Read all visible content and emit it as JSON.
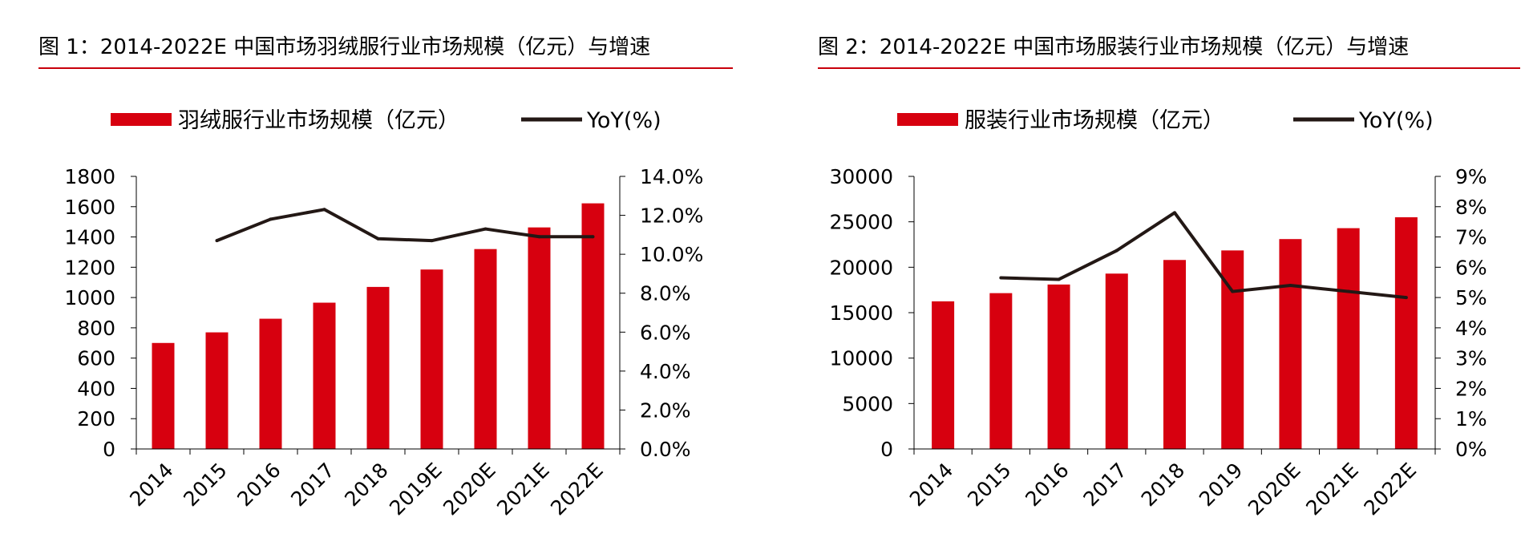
{
  "colors": {
    "bar": "#d7000f",
    "line": "#231815",
    "accent_rule": "#c8000b"
  },
  "chart_data": [
    {
      "type": "bar",
      "title": "图 1：2014-2022E 中国市场羽绒服行业市场规模（亿元）与增速",
      "legend_position": "top",
      "categories": [
        "2014",
        "2015",
        "2016",
        "2017",
        "2018",
        "2019E",
        "2020E",
        "2021E",
        "2022E"
      ],
      "series": [
        {
          "name": "羽绒服行业市场规模（亿元）",
          "type": "bar",
          "axis": "left",
          "values": [
            700,
            770,
            860,
            966,
            1070,
            1185,
            1320,
            1463,
            1622
          ]
        },
        {
          "name": "YoY(%)",
          "type": "line",
          "axis": "right",
          "values": [
            null,
            10.7,
            11.8,
            12.3,
            10.8,
            10.7,
            11.3,
            10.9,
            10.9
          ]
        }
      ],
      "y_left": {
        "ylim": [
          0,
          1800
        ],
        "ticks": [
          "0",
          "200",
          "400",
          "600",
          "800",
          "1000",
          "1200",
          "1400",
          "1600",
          "1800"
        ]
      },
      "y_right": {
        "ylim": [
          0,
          14
        ],
        "ticks": [
          "0.0%",
          "2.0%",
          "4.0%",
          "6.0%",
          "8.0%",
          "10.0%",
          "12.0%",
          "14.0%"
        ]
      },
      "grid": false
    },
    {
      "type": "bar",
      "title": "图 2：2014-2022E 中国市场服装行业市场规模（亿元）与增速",
      "legend_position": "top",
      "categories": [
        "2014",
        "2015",
        "2016",
        "2017",
        "2018",
        "2019",
        "2020E",
        "2021E",
        "2022E"
      ],
      "series": [
        {
          "name": "服装行业市场规模（亿元）",
          "type": "bar",
          "axis": "left",
          "values": [
            16250,
            17150,
            18100,
            19300,
            20800,
            21850,
            23100,
            24300,
            25500
          ]
        },
        {
          "name": "YoY(%)",
          "type": "line",
          "axis": "right",
          "values": [
            null,
            5.65,
            5.6,
            6.55,
            7.8,
            5.2,
            5.4,
            5.2,
            5.0
          ]
        }
      ],
      "y_left": {
        "ylim": [
          0,
          30000
        ],
        "ticks": [
          "0",
          "5000",
          "10000",
          "15000",
          "20000",
          "25000",
          "30000"
        ]
      },
      "y_right": {
        "ylim": [
          0,
          9
        ],
        "ticks": [
          "0%",
          "1%",
          "2%",
          "3%",
          "4%",
          "5%",
          "6%",
          "7%",
          "8%",
          "9%"
        ]
      },
      "grid": false
    }
  ]
}
